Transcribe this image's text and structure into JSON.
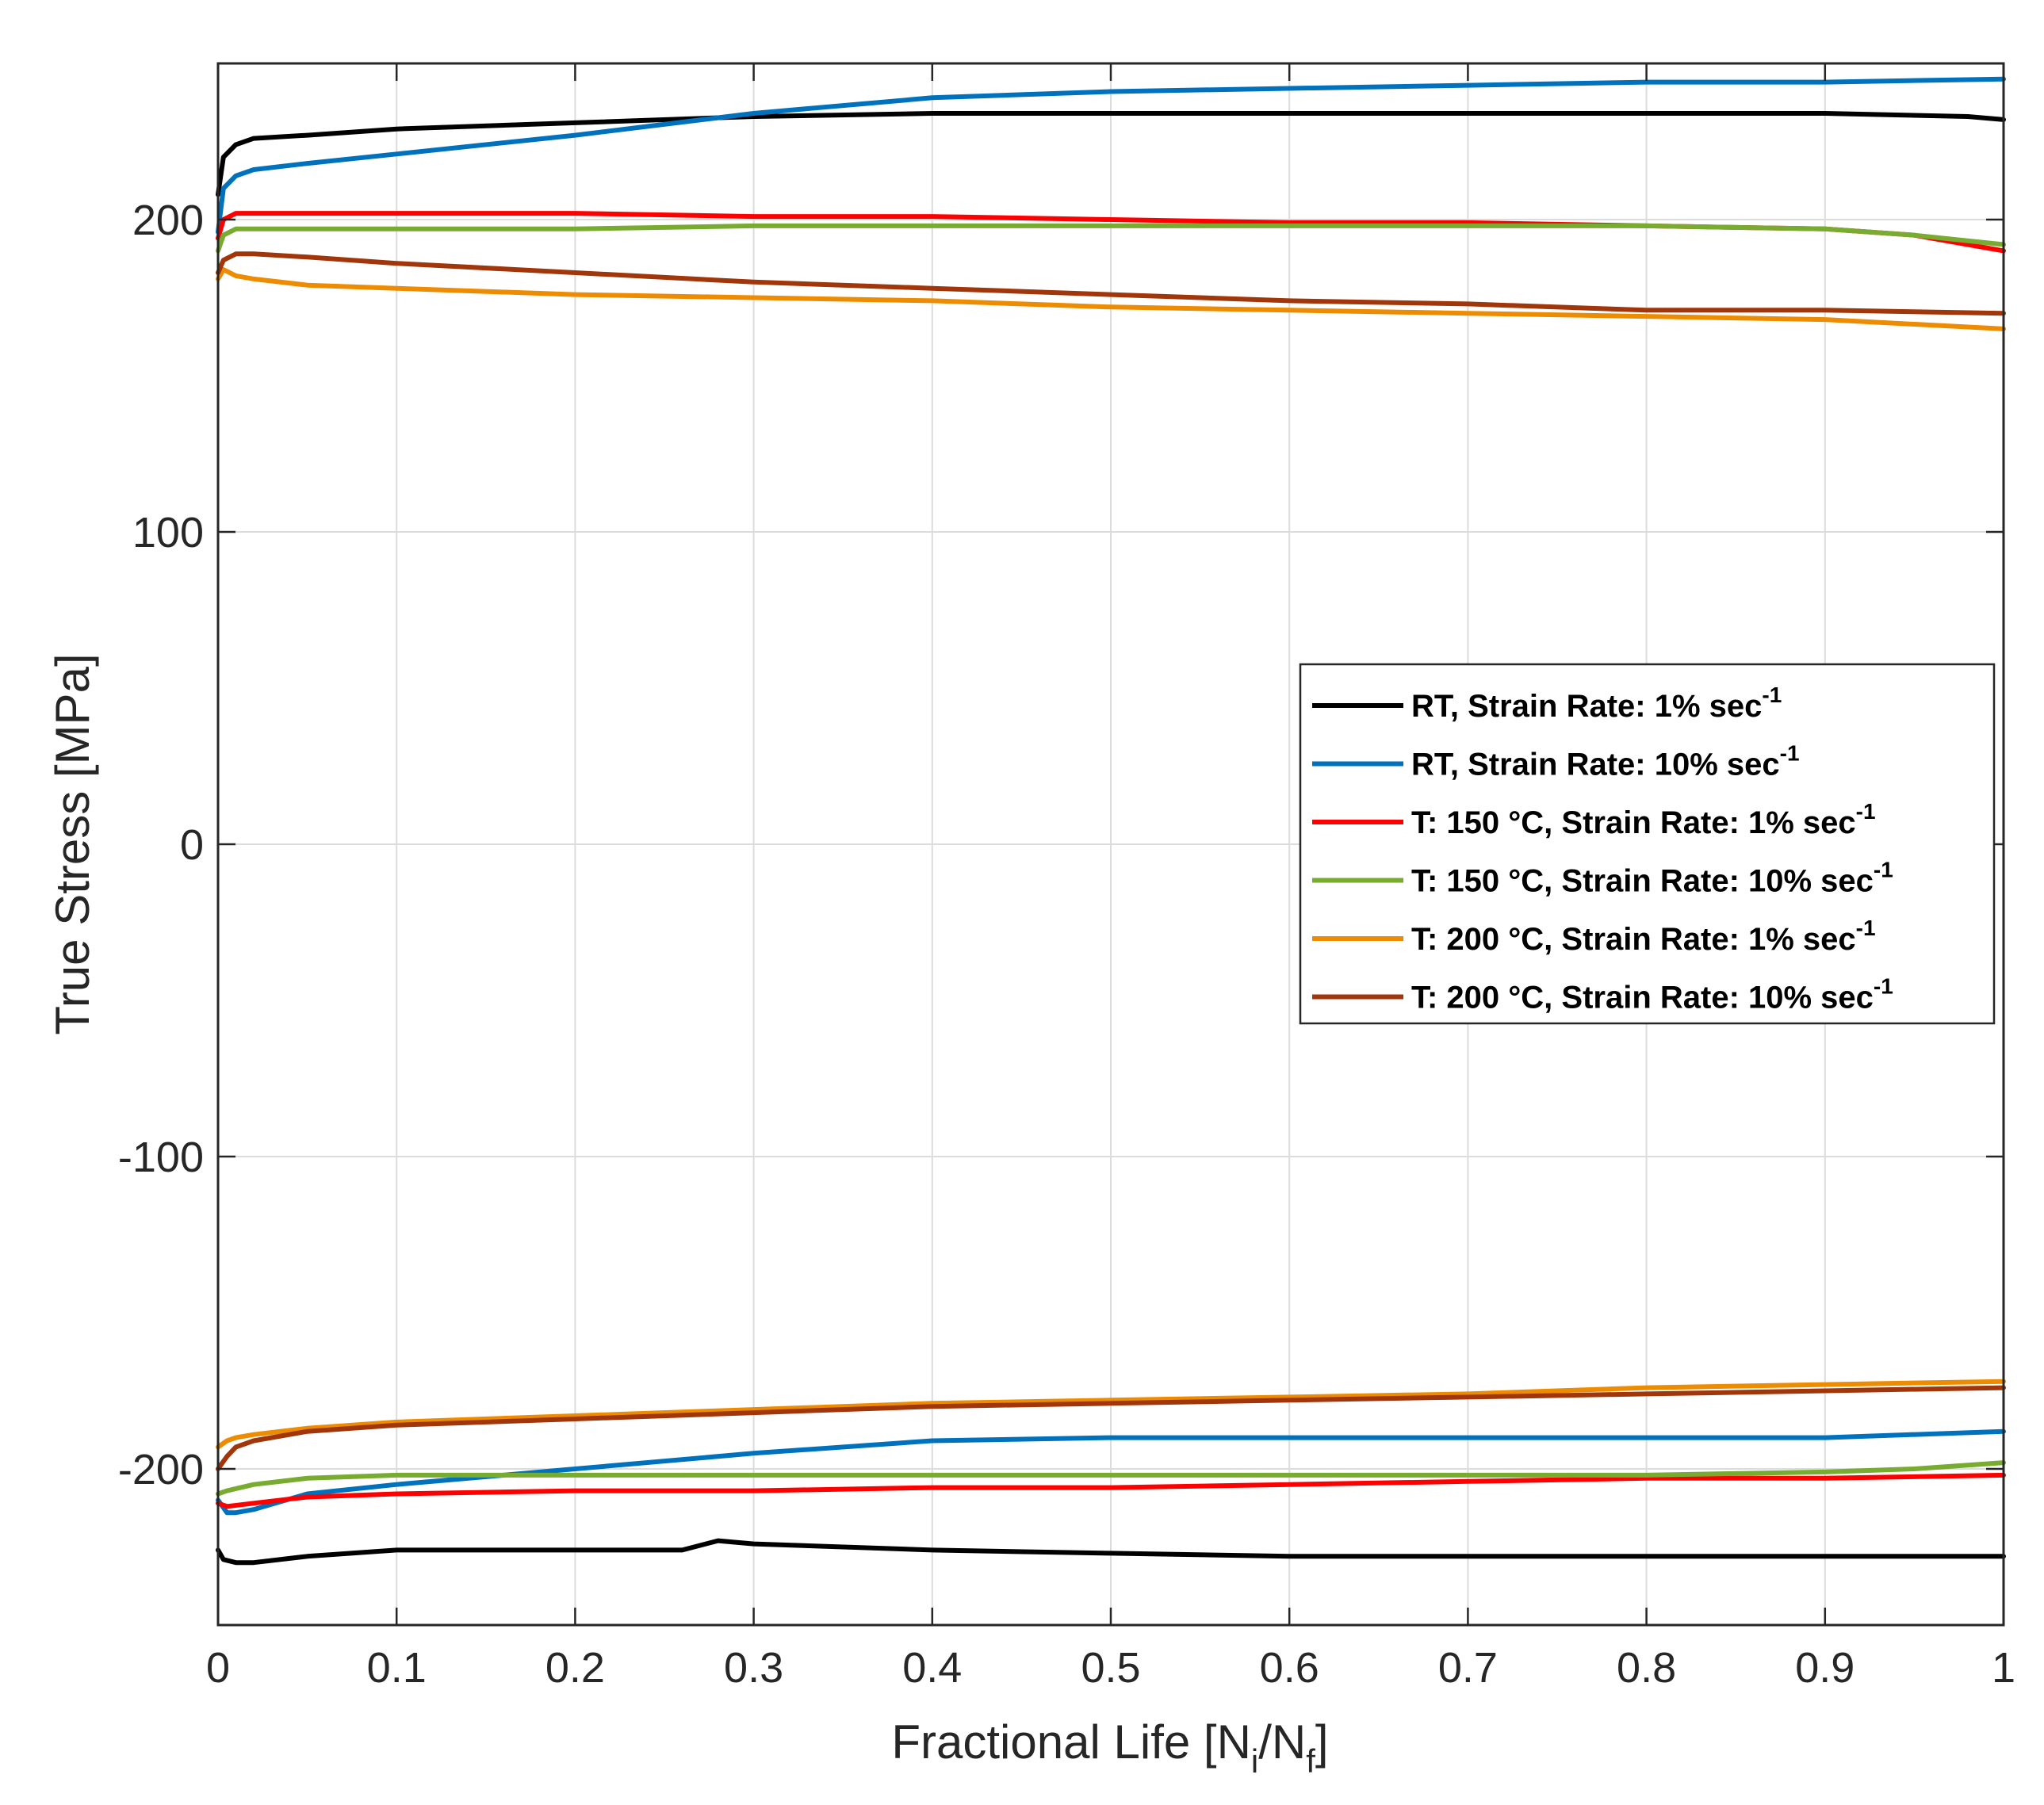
{
  "chart_data": {
    "type": "line",
    "title": "",
    "xlabel": "Fractional Life [N_i/N_f]",
    "xlabel_parts": {
      "main": "Fractional Life [N",
      "sub1": "i",
      "mid": "/N",
      "sub2": "f",
      "end": "]"
    },
    "ylabel": "True Stress [MPa]",
    "xlim": [
      0,
      1
    ],
    "ylim": [
      -250,
      250
    ],
    "xticks": [
      0,
      0.1,
      0.2,
      0.3,
      0.4,
      0.5,
      0.6,
      0.7,
      0.8,
      0.9,
      1
    ],
    "xtick_labels": [
      "0",
      "0.1",
      "0.2",
      "0.3",
      "0.4",
      "0.5",
      "0.6",
      "0.7",
      "0.8",
      "0.9",
      "1"
    ],
    "yticks": [
      -200,
      -100,
      0,
      100,
      200
    ],
    "ytick_labels": [
      "-200",
      "-100",
      "0",
      "100",
      "200"
    ],
    "grid": true,
    "legend_position": "center-right",
    "series": [
      {
        "name": "RT, Strain Rate: 1% sec-1",
        "label_main": "RT, Strain Rate: 1% sec",
        "label_sup": "-1",
        "color": "#000000",
        "max": {
          "x": [
            0,
            0.003,
            0.01,
            0.02,
            0.05,
            0.1,
            0.2,
            0.3,
            0.4,
            0.5,
            0.6,
            0.7,
            0.8,
            0.9,
            0.98,
            1.0
          ],
          "y": [
            208,
            220,
            224,
            226,
            227,
            229,
            231,
            233,
            234,
            234,
            234,
            234,
            234,
            234,
            233,
            232
          ]
        },
        "min": {
          "x": [
            0,
            0.003,
            0.01,
            0.02,
            0.05,
            0.1,
            0.2,
            0.26,
            0.28,
            0.3,
            0.4,
            0.5,
            0.6,
            0.7,
            0.8,
            0.9,
            1.0
          ],
          "y": [
            -226,
            -229,
            -230,
            -230,
            -228,
            -226,
            -226,
            -226,
            -223,
            -224,
            -226,
            -227,
            -228,
            -228,
            -228,
            -228,
            -228
          ]
        }
      },
      {
        "name": "RT, Strain Rate: 10% sec-1",
        "label_main": "RT, Strain Rate: 10% sec",
        "label_sup": "-1",
        "color": "#0072BD",
        "max": {
          "x": [
            0,
            0.003,
            0.01,
            0.02,
            0.05,
            0.1,
            0.2,
            0.3,
            0.4,
            0.5,
            0.6,
            0.7,
            0.8,
            0.9,
            1.0
          ],
          "y": [
            196,
            210,
            214,
            216,
            218,
            221,
            227,
            234,
            239,
            241,
            242,
            243,
            244,
            244,
            245
          ]
        },
        "min": {
          "x": [
            0,
            0.005,
            0.01,
            0.02,
            0.05,
            0.1,
            0.2,
            0.3,
            0.4,
            0.5,
            0.6,
            0.7,
            0.8,
            0.9,
            1.0
          ],
          "y": [
            -210,
            -214,
            -214,
            -213,
            -208,
            -205,
            -200,
            -195,
            -191,
            -190,
            -190,
            -190,
            -190,
            -190,
            -188
          ]
        }
      },
      {
        "name": "T: 150 °C, Strain Rate: 1% sec-1",
        "label_main": "T: 150 °C, Strain Rate: 1% sec",
        "label_sup": "-1",
        "color": "#FF0000",
        "max": {
          "x": [
            0,
            0.003,
            0.01,
            0.02,
            0.1,
            0.2,
            0.3,
            0.4,
            0.5,
            0.6,
            0.7,
            0.8,
            0.9,
            0.95,
            0.99,
            1.0
          ],
          "y": [
            194,
            200,
            202,
            202,
            202,
            202,
            201,
            201,
            200,
            199,
            199,
            198,
            197,
            195,
            191,
            190
          ]
        },
        "min": {
          "x": [
            0,
            0.005,
            0.02,
            0.05,
            0.1,
            0.2,
            0.3,
            0.4,
            0.5,
            0.6,
            0.7,
            0.8,
            0.9,
            1.0
          ],
          "y": [
            -211,
            -212,
            -211,
            -209,
            -208,
            -207,
            -207,
            -206,
            -206,
            -205,
            -204,
            -203,
            -203,
            -202
          ]
        }
      },
      {
        "name": "T: 150 °C, Strain Rate: 10% sec-1",
        "label_main": "T: 150 °C, Strain Rate: 10% sec",
        "label_sup": "-1",
        "color": "#77AC30",
        "max": {
          "x": [
            0,
            0.003,
            0.01,
            0.05,
            0.1,
            0.2,
            0.3,
            0.4,
            0.5,
            0.6,
            0.7,
            0.8,
            0.9,
            0.95,
            1.0
          ],
          "y": [
            190,
            195,
            197,
            197,
            197,
            197,
            198,
            198,
            198,
            198,
            198,
            198,
            197,
            195,
            192
          ]
        },
        "min": {
          "x": [
            0,
            0.005,
            0.02,
            0.05,
            0.1,
            0.2,
            0.3,
            0.4,
            0.5,
            0.6,
            0.7,
            0.8,
            0.9,
            0.95,
            1.0
          ],
          "y": [
            -208,
            -207,
            -205,
            -203,
            -202,
            -202,
            -202,
            -202,
            -202,
            -202,
            -202,
            -202,
            -201,
            -200,
            -198
          ]
        }
      },
      {
        "name": "T: 200 °C, Strain Rate: 1% sec-1",
        "label_main": "T: 200 °C, Strain Rate: 1% sec",
        "label_sup": "-1",
        "color": "#ED8C00",
        "max": {
          "x": [
            0,
            0.003,
            0.01,
            0.02,
            0.05,
            0.1,
            0.2,
            0.3,
            0.4,
            0.5,
            0.6,
            0.7,
            0.8,
            0.9,
            1.0
          ],
          "y": [
            181,
            184,
            182,
            181,
            179,
            178,
            176,
            175,
            174,
            172,
            171,
            170,
            169,
            168,
            165
          ]
        },
        "min": {
          "x": [
            0,
            0.005,
            0.01,
            0.02,
            0.05,
            0.1,
            0.2,
            0.3,
            0.4,
            0.5,
            0.6,
            0.7,
            0.8,
            0.9,
            1.0
          ],
          "y": [
            -193,
            -191,
            -190,
            -189,
            -187,
            -185,
            -183,
            -181,
            -179,
            -178,
            -177,
            -176,
            -174,
            -173,
            -172
          ]
        }
      },
      {
        "name": "T: 200 °C, Strain Rate: 10% sec-1",
        "label_main": "T: 200 °C, Strain Rate: 10% sec",
        "label_sup": "-1",
        "color": "#A0360A",
        "max": {
          "x": [
            0,
            0.003,
            0.01,
            0.02,
            0.05,
            0.1,
            0.2,
            0.3,
            0.4,
            0.5,
            0.6,
            0.7,
            0.8,
            0.9,
            1.0
          ],
          "y": [
            183,
            187,
            189,
            189,
            188,
            186,
            183,
            180,
            178,
            176,
            174,
            173,
            171,
            171,
            170
          ]
        },
        "min": {
          "x": [
            0,
            0.005,
            0.01,
            0.02,
            0.05,
            0.1,
            0.2,
            0.3,
            0.4,
            0.5,
            0.6,
            0.7,
            0.8,
            0.9,
            1.0
          ],
          "y": [
            -200,
            -196,
            -193,
            -191,
            -188,
            -186,
            -184,
            -182,
            -180,
            -179,
            -178,
            -177,
            -176,
            -175,
            -174
          ]
        }
      }
    ]
  }
}
